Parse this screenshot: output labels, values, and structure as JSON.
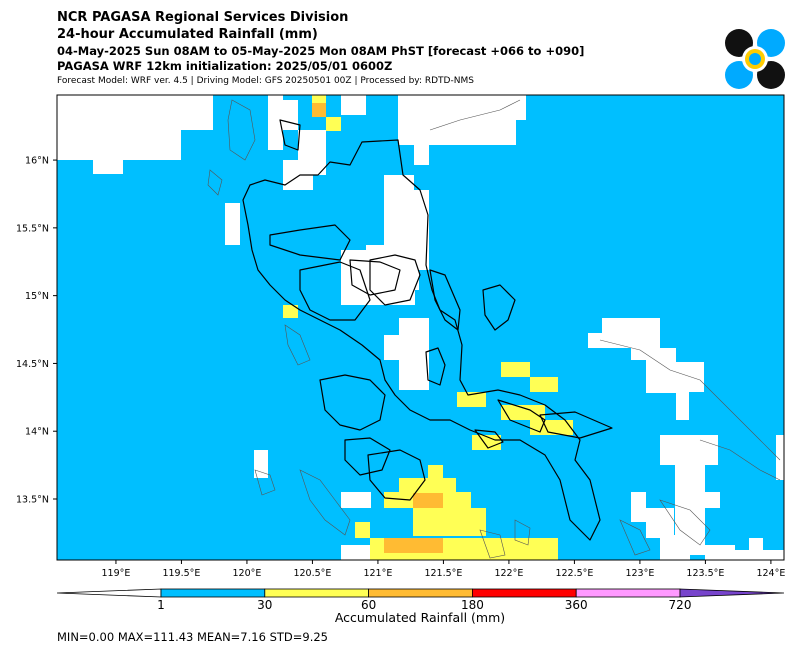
{
  "header": {
    "line1": "NCR PAGASA Regional Services Division",
    "line2": "24-hour Accumulated Rainfall (mm)",
    "line3": "04-May-2025 Sun 08AM to 05-May-2025 Mon 08AM PhST [forecast +066 to +090]",
    "line4": "PAGASA WRF 12km initialization: 2025/05/01 0600Z",
    "line5": "Forecast Model: WRF ver. 4.5 | Driving Model: GFS 20250501 00Z | Processed by: RDTD-NMS"
  },
  "logo": {
    "icon": "pagasa-logo-icon"
  },
  "map": {
    "lon_range": [
      118.55,
      124.1
    ],
    "lat_range": [
      13.05,
      16.48
    ],
    "lon_ticks": [
      "119°E",
      "119.5°E",
      "120°E",
      "120.5°E",
      "121°E",
      "121.5°E",
      "122°E",
      "122.5°E",
      "123°E",
      "123.5°E",
      "124°E"
    ],
    "lat_ticks": [
      "16°N",
      "15.5°N",
      "15°N",
      "14.5°N",
      "14°N",
      "13.5°N"
    ],
    "background_color": "#00bfff",
    "no_rain_color": "#ffffff"
  },
  "colorbar": {
    "label": "Accumulated Rainfall (mm)",
    "ticks": [
      "1",
      "30",
      "60",
      "180",
      "360",
      "720"
    ],
    "colors": [
      "#00bfff",
      "#ffff55",
      "#ffbb33",
      "#ff0000",
      "#ff99ff",
      "#7744cc"
    ]
  },
  "stats": "MIN=0.00   MAX=111.43   MEAN=7.16   STD=9.25"
}
